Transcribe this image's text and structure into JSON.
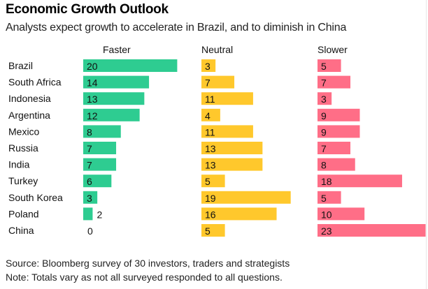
{
  "chart_data": {
    "type": "bar",
    "title": "Economic Growth Outlook",
    "subtitle": "Analysts expect growth to accelerate in Brazil, and to diminish in China",
    "categories": [
      "Brazil",
      "South Africa",
      "Indonesia",
      "Argentina",
      "Mexico",
      "Russia",
      "India",
      "Turkey",
      "South Korea",
      "Poland",
      "China"
    ],
    "series": [
      {
        "name": "Faster",
        "color": "#2ecc91",
        "values": [
          20,
          14,
          13,
          12,
          8,
          7,
          7,
          6,
          3,
          2,
          0
        ]
      },
      {
        "name": "Neutral",
        "color": "#ffc82c",
        "values": [
          3,
          7,
          11,
          4,
          11,
          13,
          13,
          5,
          19,
          16,
          5
        ]
      },
      {
        "name": "Slower",
        "color": "#ff6e87",
        "values": [
          5,
          7,
          3,
          9,
          9,
          7,
          8,
          18,
          5,
          10,
          23
        ]
      }
    ],
    "xlabel": "",
    "ylabel": "",
    "xlim": [
      0,
      23
    ],
    "grid": false,
    "legend": "none"
  },
  "footer": {
    "source": "Source: Bloomberg survey of 30 investors, traders and strategists",
    "note": "Note: Totals vary as not all surveyed responded to all questions."
  }
}
